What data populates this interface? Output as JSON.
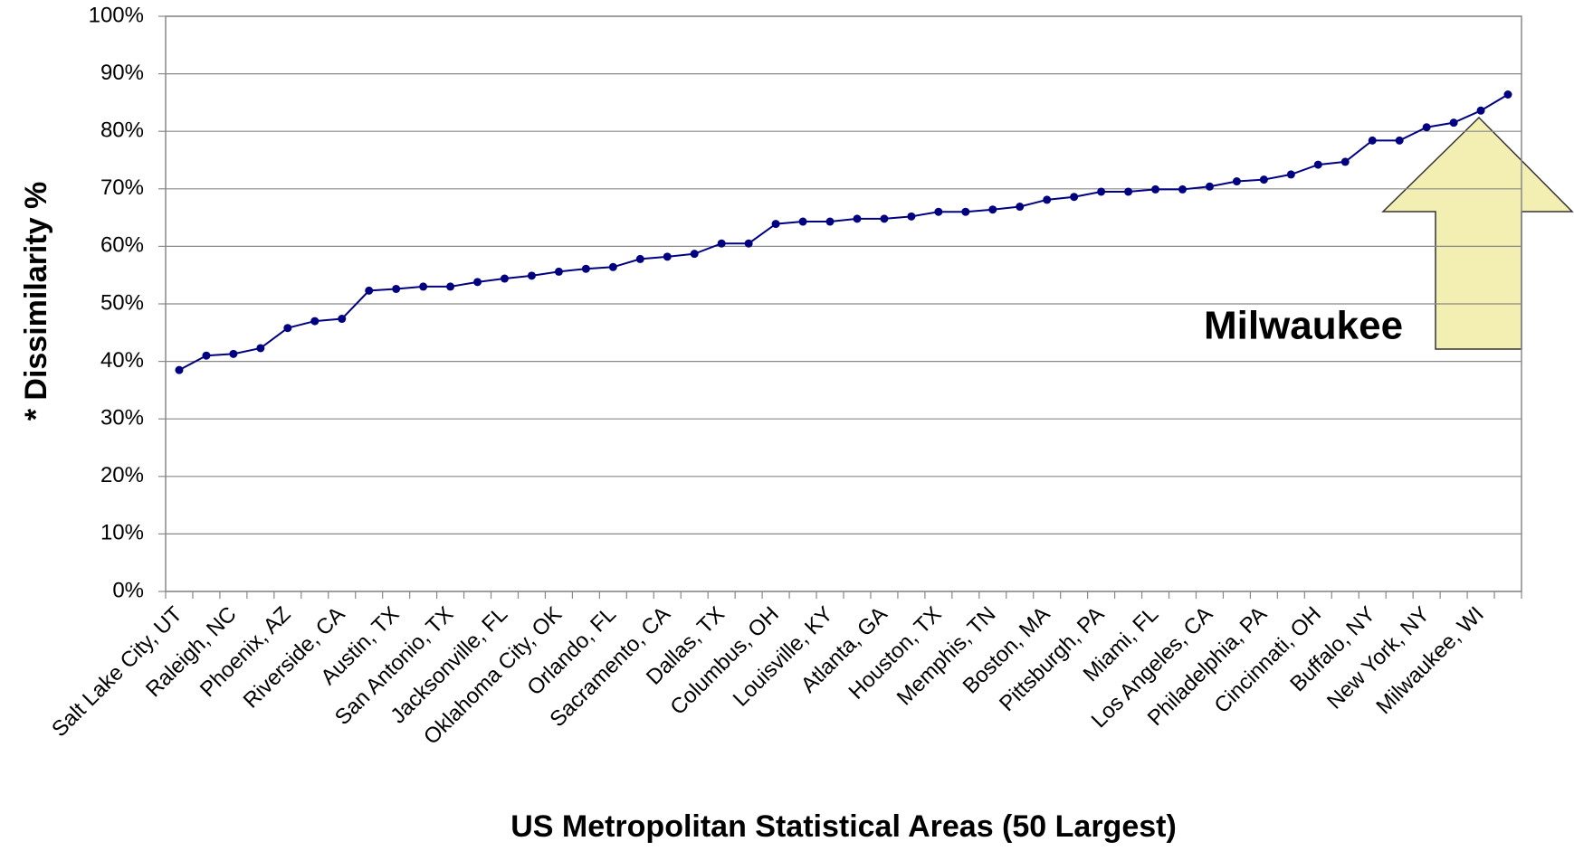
{
  "chart_data": {
    "type": "line",
    "xlabel": "US Metropolitan Statistical Areas (50 Largest)",
    "ylabel": "* Dissimilarity %",
    "annotation": "Milwaukee",
    "categories": [
      "Salt Lake City, UT",
      null,
      "Raleigh, NC",
      null,
      "Phoenix, AZ",
      null,
      "Riverside, CA",
      null,
      "Austin, TX",
      null,
      "San Antonio, TX",
      null,
      "Jacksonville, FL",
      null,
      "Oklahoma City, OK",
      null,
      "Orlando, FL",
      null,
      "Sacramento, CA",
      null,
      "Dallas, TX",
      null,
      "Columbus, OH",
      null,
      "Louisville, KY",
      null,
      "Atlanta, GA",
      null,
      "Houston, TX",
      null,
      "Memphis, TN",
      null,
      "Boston, MA",
      null,
      "Pittsburgh, PA",
      null,
      "Miami, FL",
      null,
      "Los Angeles, CA",
      null,
      "Philadelphia, PA",
      null,
      "Cincinnati, OH",
      null,
      "Buffalo, NY",
      null,
      "New York, NY",
      null,
      "Milwaukee, WI",
      null
    ],
    "series": [
      {
        "name": "Dissimilarity",
        "color": "#000080",
        "values": [
          38.5,
          41,
          41.3,
          42.3,
          45.8,
          47,
          47.4,
          52.3,
          52.6,
          53,
          53,
          53.8,
          54.4,
          54.9,
          55.6,
          56.1,
          56.4,
          57.8,
          58.2,
          58.7,
          60.5,
          60.5,
          63.9,
          64.3,
          64.3,
          64.8,
          64.8,
          65.2,
          66,
          66,
          66.4,
          66.9,
          68.1,
          68.6,
          69.5,
          69.5,
          69.9,
          69.9,
          70.4,
          71.3,
          71.6,
          72.5,
          74.2,
          74.7,
          78.4,
          78.4,
          80.7,
          81.5,
          83.6,
          86.4
        ]
      }
    ],
    "ylim": [
      0,
      100
    ],
    "yticks": [
      {
        "value": 0,
        "label": "0%"
      },
      {
        "value": 10,
        "label": "10%"
      },
      {
        "value": 20,
        "label": "20%"
      },
      {
        "value": 30,
        "label": "30%"
      },
      {
        "value": 40,
        "label": "40%"
      },
      {
        "value": 50,
        "label": "50%"
      },
      {
        "value": 60,
        "label": "60%"
      },
      {
        "value": 70,
        "label": "70%"
      },
      {
        "value": 80,
        "label": "80%"
      },
      {
        "value": 90,
        "label": "90%"
      },
      {
        "value": 100,
        "label": "100%"
      }
    ],
    "grid": true
  }
}
